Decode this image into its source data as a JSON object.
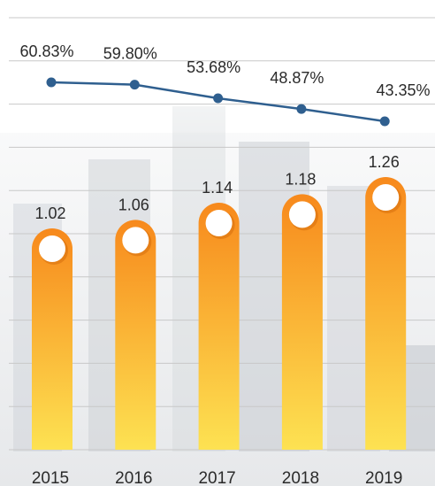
{
  "chart_data": {
    "type": "bar",
    "categories": [
      "2015",
      "2016",
      "2017",
      "2018",
      "2019"
    ],
    "series": [
      {
        "type": "bar",
        "values": [
          1.02,
          1.06,
          1.14,
          1.18,
          1.26
        ],
        "labels": [
          "1.02",
          "1.06",
          "1.14",
          "1.18",
          "1.26"
        ]
      },
      {
        "type": "line",
        "values": [
          60.83,
          59.8,
          53.68,
          48.87,
          43.35
        ],
        "labels": [
          "60.83%",
          "59.80%",
          "53.68%",
          "48.87%",
          "43.35%"
        ]
      }
    ],
    "grid": true,
    "colors": {
      "bar_top": "#f7891c",
      "bar_bottom": "#fde252",
      "line": "#2f5f8f",
      "grid": "#c8c8c8",
      "text": "#2a2a2a"
    }
  }
}
